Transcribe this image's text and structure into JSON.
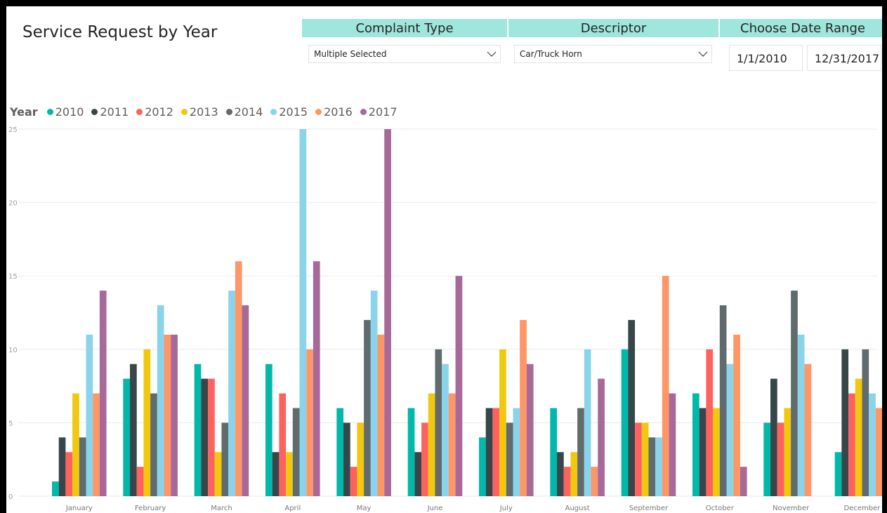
{
  "title": "Service Request by Year",
  "slicers": {
    "complaint_type": {
      "header": "Complaint Type",
      "value": "Multiple Selected",
      "icon": "chevron-down-icon"
    },
    "descriptor": {
      "header": "Descriptor",
      "value": "Car/Truck Horn",
      "icon": "chevron-down-icon"
    },
    "date_range": {
      "header": "Choose Date Range",
      "start": "1/1/2010",
      "end": "12/31/2017"
    }
  },
  "legend": {
    "title": "Year",
    "items": [
      "2010",
      "2011",
      "2012",
      "2013",
      "2014",
      "2015",
      "2016",
      "2017"
    ]
  },
  "colors": [
    "#01b8aa",
    "#374649",
    "#fd625e",
    "#f2c80f",
    "#5f6b6d",
    "#8ad4eb",
    "#fe9666",
    "#a66999"
  ],
  "chart_data": {
    "type": "bar",
    "categories": [
      "January",
      "February",
      "March",
      "April",
      "May",
      "June",
      "July",
      "August",
      "September",
      "October",
      "November",
      "December"
    ],
    "series": [
      {
        "name": "2010",
        "values": [
          1,
          8,
          9,
          9,
          6,
          6,
          4,
          6,
          10,
          7,
          5,
          3
        ]
      },
      {
        "name": "2011",
        "values": [
          4,
          9,
          8,
          3,
          5,
          3,
          6,
          3,
          12,
          6,
          8,
          10
        ]
      },
      {
        "name": "2012",
        "values": [
          3,
          2,
          8,
          7,
          2,
          5,
          6,
          2,
          5,
          10,
          5,
          7
        ]
      },
      {
        "name": "2013",
        "values": [
          7,
          10,
          3,
          3,
          5,
          7,
          10,
          3,
          5,
          6,
          6,
          8
        ]
      },
      {
        "name": "2014",
        "values": [
          4,
          7,
          5,
          6,
          12,
          10,
          5,
          6,
          4,
          13,
          14,
          10
        ]
      },
      {
        "name": "2015",
        "values": [
          11,
          13,
          14,
          25,
          14,
          9,
          6,
          10,
          4,
          9,
          11,
          7
        ]
      },
      {
        "name": "2016",
        "values": [
          7,
          11,
          16,
          10,
          11,
          7,
          12,
          2,
          15,
          11,
          9,
          6
        ]
      },
      {
        "name": "2017",
        "values": [
          14,
          11,
          13,
          16,
          25,
          15,
          9,
          8,
          7,
          2,
          0,
          0
        ]
      }
    ],
    "yticks": [
      "0",
      "5",
      "10",
      "15",
      "20",
      "25"
    ],
    "ylim": [
      0,
      25
    ],
    "grid": true,
    "legend_position": "top-left"
  }
}
